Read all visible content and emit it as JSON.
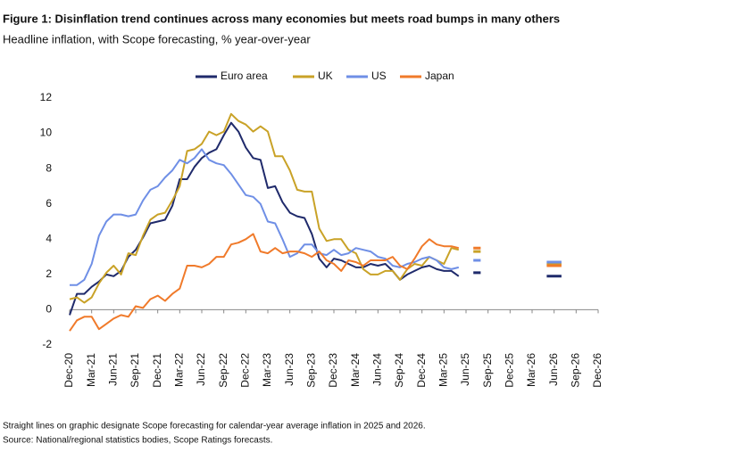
{
  "chart_data": {
    "type": "line",
    "title": "Figure 1: Disinflation trend continues across many economies but meets road bumps in many others",
    "subtitle": "Headline inflation, with Scope forecasting, % year-over-year",
    "notes": [
      "Straight lines on graphic designate Scope forecasting for calendar-year average inflation in 2025 and 2026.",
      "Source: National/regional statistics bodies, Scope Ratings forecasts."
    ],
    "categories": [
      "Dec-20",
      null,
      null,
      "Mar-21",
      null,
      null,
      "Jun-21",
      null,
      null,
      "Sep-21",
      null,
      null,
      "Dec-21",
      null,
      null,
      "Mar-22",
      null,
      null,
      "Jun-22",
      null,
      null,
      "Sep-22",
      null,
      null,
      "Dec-22",
      null,
      null,
      "Mar-23",
      null,
      null,
      "Jun-23",
      null,
      null,
      "Sep-23",
      null,
      null,
      "Dec-23",
      null,
      null,
      "Mar-24",
      null,
      null,
      "Jun-24",
      null,
      null,
      "Sep-24",
      null,
      null,
      "Dec-24",
      null,
      null,
      "Mar-25",
      null,
      null,
      "Jun-25",
      null,
      null,
      "Sep-25",
      null,
      null,
      "Dec-25",
      null,
      null,
      "Mar-26",
      null,
      null,
      "Jun-26",
      null,
      null,
      "Sep-26",
      null,
      null,
      "Dec-26"
    ],
    "ylim": [
      -2,
      12
    ],
    "yticks": [
      -2,
      0,
      2,
      4,
      6,
      8,
      10,
      12
    ],
    "grid": false,
    "legend": "top",
    "series": [
      {
        "name": "Euro area",
        "color": "#1f2a6b",
        "values": [
          -0.3,
          0.9,
          0.9,
          1.3,
          1.6,
          2.0,
          1.9,
          2.2,
          3.0,
          3.4,
          4.1,
          4.9,
          5.0,
          5.1,
          5.9,
          7.4,
          7.4,
          8.1,
          8.6,
          8.9,
          9.1,
          9.9,
          10.6,
          10.1,
          9.2,
          8.6,
          8.5,
          6.9,
          7.0,
          6.1,
          5.5,
          5.3,
          5.2,
          4.3,
          2.9,
          2.4,
          2.9,
          2.8,
          2.6,
          2.4,
          2.4,
          2.6,
          2.5,
          2.6,
          2.2,
          1.7,
          2.0,
          2.2,
          2.4,
          2.5,
          2.3,
          2.2,
          2.2,
          1.9,
          null,
          null,
          null,
          null,
          null,
          null,
          null,
          null,
          null,
          null,
          null,
          null,
          null,
          null,
          null,
          null,
          null,
          null,
          null
        ],
        "forecast": [
          null,
          null,
          null,
          null,
          null,
          null,
          null,
          null,
          null,
          null,
          null,
          null,
          null,
          null,
          null,
          null,
          null,
          null,
          null,
          null,
          null,
          null,
          null,
          null,
          null,
          null,
          null,
          null,
          null,
          null,
          null,
          null,
          null,
          null,
          null,
          null,
          null,
          null,
          null,
          null,
          null,
          null,
          null,
          null,
          null,
          null,
          null,
          null,
          null,
          null,
          null,
          null,
          null,
          null,
          null,
          2.1,
          2.1,
          null,
          null,
          null,
          null,
          null,
          null,
          null,
          null,
          1.9,
          1.9,
          1.9,
          null,
          null,
          null,
          null,
          null
        ]
      },
      {
        "name": "UK",
        "color": "#c9a227",
        "values": [
          0.6,
          0.7,
          0.4,
          0.7,
          1.5,
          2.1,
          2.5,
          2.0,
          3.2,
          3.1,
          4.2,
          5.1,
          5.4,
          5.5,
          6.2,
          7.0,
          9.0,
          9.1,
          9.4,
          10.1,
          9.9,
          10.1,
          11.1,
          10.7,
          10.5,
          10.1,
          10.4,
          10.1,
          8.7,
          8.7,
          7.9,
          6.8,
          6.7,
          6.7,
          4.6,
          3.9,
          4.0,
          4.0,
          3.4,
          3.2,
          2.3,
          2.0,
          2.0,
          2.2,
          2.2,
          1.7,
          2.3,
          2.6,
          2.5,
          3.0,
          2.8,
          2.6,
          3.5,
          3.4,
          null,
          null,
          null,
          null,
          null,
          null,
          null,
          null,
          null,
          null,
          null,
          null,
          null,
          null,
          null,
          null,
          null,
          null,
          null
        ],
        "forecast": [
          null,
          null,
          null,
          null,
          null,
          null,
          null,
          null,
          null,
          null,
          null,
          null,
          null,
          null,
          null,
          null,
          null,
          null,
          null,
          null,
          null,
          null,
          null,
          null,
          null,
          null,
          null,
          null,
          null,
          null,
          null,
          null,
          null,
          null,
          null,
          null,
          null,
          null,
          null,
          null,
          null,
          null,
          null,
          null,
          null,
          null,
          null,
          null,
          null,
          null,
          null,
          null,
          null,
          null,
          null,
          3.3,
          3.3,
          null,
          null,
          null,
          null,
          null,
          null,
          null,
          null,
          2.6,
          2.6,
          2.6,
          null,
          null,
          null,
          null,
          null
        ]
      },
      {
        "name": "US",
        "color": "#6f8fe6",
        "values": [
          1.4,
          1.4,
          1.7,
          2.6,
          4.2,
          5.0,
          5.4,
          5.4,
          5.3,
          5.4,
          6.2,
          6.8,
          7.0,
          7.5,
          7.9,
          8.5,
          8.3,
          8.6,
          9.1,
          8.5,
          8.3,
          8.2,
          7.7,
          7.1,
          6.5,
          6.4,
          6.0,
          5.0,
          4.9,
          4.0,
          3.0,
          3.2,
          3.7,
          3.7,
          3.2,
          3.1,
          3.4,
          3.1,
          3.2,
          3.5,
          3.4,
          3.3,
          3.0,
          2.9,
          2.5,
          2.4,
          2.6,
          2.7,
          2.9,
          3.0,
          2.8,
          2.4,
          2.3,
          2.4,
          null,
          null,
          null,
          null,
          null,
          null,
          null,
          null,
          null,
          null,
          null,
          null,
          null,
          null,
          null,
          null,
          null,
          null,
          null
        ],
        "forecast": [
          null,
          null,
          null,
          null,
          null,
          null,
          null,
          null,
          null,
          null,
          null,
          null,
          null,
          null,
          null,
          null,
          null,
          null,
          null,
          null,
          null,
          null,
          null,
          null,
          null,
          null,
          null,
          null,
          null,
          null,
          null,
          null,
          null,
          null,
          null,
          null,
          null,
          null,
          null,
          null,
          null,
          null,
          null,
          null,
          null,
          null,
          null,
          null,
          null,
          null,
          null,
          null,
          null,
          null,
          null,
          2.8,
          2.8,
          null,
          null,
          null,
          null,
          null,
          null,
          null,
          null,
          2.7,
          2.7,
          2.7,
          null,
          null,
          null,
          null,
          null
        ]
      },
      {
        "name": "Japan",
        "color": "#f07a2a",
        "values": [
          -1.2,
          -0.6,
          -0.4,
          -0.4,
          -1.1,
          -0.8,
          -0.5,
          -0.3,
          -0.4,
          0.2,
          0.1,
          0.6,
          0.8,
          0.5,
          0.9,
          1.2,
          2.5,
          2.5,
          2.4,
          2.6,
          3.0,
          3.0,
          3.7,
          3.8,
          4.0,
          4.3,
          3.3,
          3.2,
          3.5,
          3.2,
          3.3,
          3.3,
          3.2,
          3.0,
          3.3,
          2.8,
          2.6,
          2.2,
          2.8,
          2.7,
          2.5,
          2.8,
          2.8,
          2.8,
          3.0,
          2.5,
          2.3,
          2.9,
          3.6,
          4.0,
          3.7,
          3.6,
          3.6,
          3.5,
          null,
          null,
          null,
          null,
          null,
          null,
          null,
          null,
          null,
          null,
          null,
          null,
          null,
          null,
          null,
          null,
          null,
          null,
          null
        ],
        "forecast": [
          null,
          null,
          null,
          null,
          null,
          null,
          null,
          null,
          null,
          null,
          null,
          null,
          null,
          null,
          null,
          null,
          null,
          null,
          null,
          null,
          null,
          null,
          null,
          null,
          null,
          null,
          null,
          null,
          null,
          null,
          null,
          null,
          null,
          null,
          null,
          null,
          null,
          null,
          null,
          null,
          null,
          null,
          null,
          null,
          null,
          null,
          null,
          null,
          null,
          null,
          null,
          null,
          null,
          null,
          null,
          3.5,
          3.5,
          null,
          null,
          null,
          null,
          null,
          null,
          null,
          null,
          2.5,
          2.5,
          2.5,
          null,
          null,
          null,
          null,
          null
        ]
      }
    ]
  }
}
